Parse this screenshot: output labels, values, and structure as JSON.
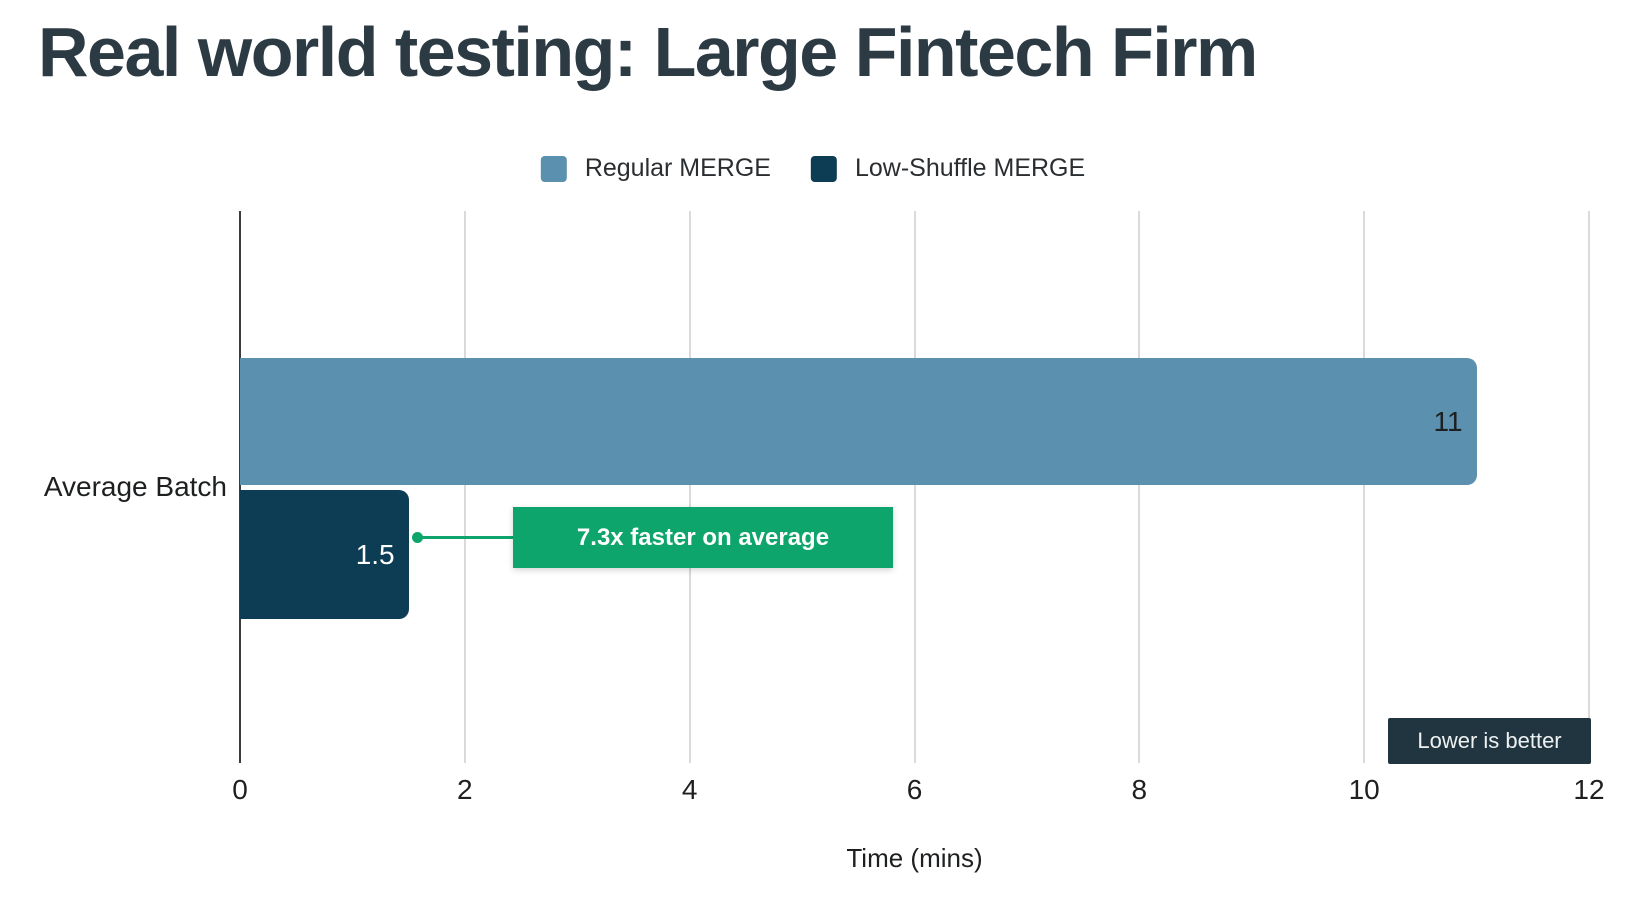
{
  "title": "Real world testing: Large Fintech Firm",
  "colors": {
    "title_text": "#2c3a43",
    "regular_series": "#5b90ae",
    "low_shuffle_series": "#0d3c55",
    "annotation_green": "#0ea56c",
    "badge_bg": "#20353f",
    "grid_line": "#dadada",
    "axis_line": "#3c3c3c"
  },
  "legend": {
    "items": [
      {
        "label": "Regular MERGE"
      },
      {
        "label": "Low-Shuffle MERGE"
      }
    ]
  },
  "chart_data": {
    "type": "bar",
    "orientation": "horizontal",
    "title": "Real world testing: Large Fintech Firm",
    "categories": [
      "Average Batch"
    ],
    "series": [
      {
        "name": "Regular MERGE",
        "color": "#5b90ae",
        "values": [
          11
        ],
        "value_label": "11"
      },
      {
        "name": "Low-Shuffle MERGE",
        "color": "#0d3c55",
        "values": [
          1.5
        ],
        "value_label": "1.5"
      }
    ],
    "xlabel": "Time (mins)",
    "xlim": [
      0,
      12
    ],
    "xticks": [
      0,
      2,
      4,
      6,
      8,
      10,
      12
    ],
    "grid": true,
    "legend_position": "top center",
    "annotations": [
      {
        "text": "7.3x faster on average",
        "attached_to": "Low-Shuffle MERGE bar",
        "color": "#0ea56c"
      },
      {
        "text": "Lower is better",
        "position": "bottom right",
        "color": "#20353f"
      }
    ]
  },
  "annotation": {
    "label": "7.3x faster on average"
  },
  "badge": {
    "label": "Lower is better"
  }
}
